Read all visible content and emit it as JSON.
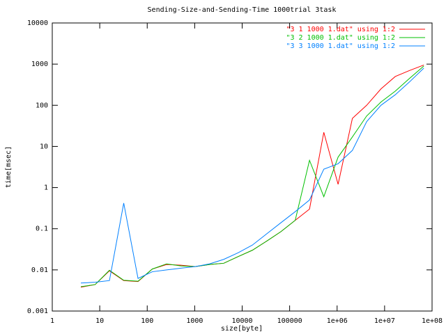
{
  "chart_data": {
    "type": "line",
    "title": "Sending-Size-and-Sending-Time 1000trial 3task",
    "xlabel": "size[byte]",
    "ylabel": "time[msec]",
    "xlog": true,
    "ylog": true,
    "legend": "top-right",
    "x": [
      4,
      8,
      16,
      32,
      64,
      128,
      256,
      512,
      1024,
      2048,
      4096,
      8192,
      16384,
      32768,
      65536,
      131072,
      262144,
      524288,
      1048576,
      2097152,
      4194304,
      8388608,
      16777216,
      33554432,
      67108864
    ],
    "series": [
      {
        "name": "\"3 1 1000 1.dat\" using 1:2",
        "color": "#ff0000",
        "values": [
          0.0038,
          0.0044,
          0.0095,
          0.0055,
          0.0052,
          0.0105,
          0.0135,
          0.013,
          0.012,
          0.0135,
          0.0145,
          0.021,
          0.03,
          0.05,
          0.085,
          0.16,
          0.3,
          22,
          1.2,
          48,
          100,
          250,
          500,
          700,
          950
        ]
      },
      {
        "name": "\"3 2 1000 1.dat\" using 1:2",
        "color": "#00c000",
        "values": [
          0.0039,
          0.0044,
          0.0098,
          0.0056,
          0.0053,
          0.0105,
          0.014,
          0.0125,
          0.012,
          0.0135,
          0.0145,
          0.021,
          0.03,
          0.05,
          0.085,
          0.16,
          4.6,
          0.6,
          5.5,
          17,
          55,
          120,
          220,
          450,
          900
        ]
      },
      {
        "name": "\"3 3 1000 1.dat\" using 1:2",
        "color": "#0080ff",
        "values": [
          0.0048,
          0.005,
          0.0055,
          0.42,
          0.0062,
          0.009,
          0.01,
          0.011,
          0.012,
          0.014,
          0.018,
          0.026,
          0.04,
          0.075,
          0.14,
          0.26,
          0.5,
          2.8,
          3.8,
          8,
          40,
          100,
          180,
          370,
          800
        ]
      }
    ],
    "xlim": [
      1,
      100000000
    ],
    "xticks": [
      1,
      10,
      100,
      1000,
      10000,
      100000,
      {
        "value": 1000000,
        "label": "1e+06"
      },
      {
        "value": 10000000,
        "label": "1e+07"
      },
      {
        "value": 100000000,
        "label": "1e+08"
      }
    ],
    "ylim": [
      0.001,
      10000
    ],
    "yticks": [
      0.001,
      0.01,
      0.1,
      1,
      10,
      100,
      1000,
      10000
    ]
  }
}
